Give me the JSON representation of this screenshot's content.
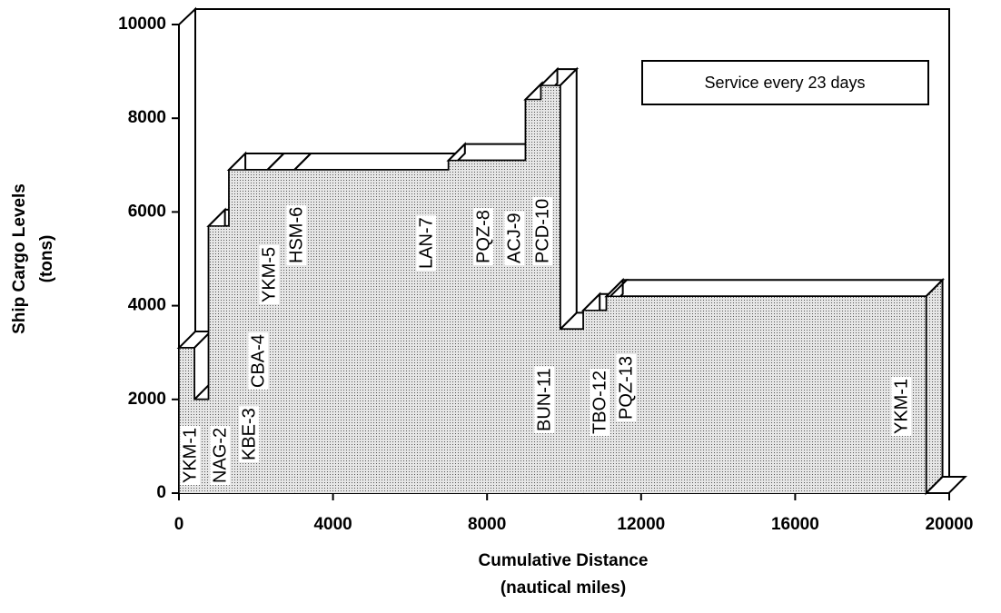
{
  "chart_data": {
    "type": "step-area-3d",
    "annotation": "Service every 23 days",
    "xlabel": [
      "Cumulative Distance",
      "(nautical miles)"
    ],
    "ylabel": [
      "Ship Cargo Levels",
      "(tons)"
    ],
    "categories": [
      "YKM-1",
      "NAG-2",
      "KBE-3",
      "CBA-4",
      "YKM-5",
      "HSM-6",
      "LAN-7",
      "PQZ-8",
      "ACJ-9",
      "PCD-10",
      "BUN-11",
      "TBO-12",
      "PQZ-13",
      "YKM-1"
    ],
    "x": [
      0,
      400,
      770,
      1300,
      2300,
      3000,
      7000,
      9000,
      9400,
      9900,
      10500,
      11100,
      11200,
      19400
    ],
    "values": [
      3100,
      2000,
      5700,
      6900,
      6900,
      6900,
      7100,
      8400,
      8700,
      3500,
      3900,
      4200,
      4200,
      0
    ],
    "xlim": [
      0,
      20000
    ],
    "xticks": [
      0,
      4000,
      8000,
      12000,
      16000,
      20000
    ],
    "ylim": [
      0,
      10000
    ],
    "yticks": [
      0,
      2000,
      4000,
      6000,
      8000,
      10000
    ]
  }
}
